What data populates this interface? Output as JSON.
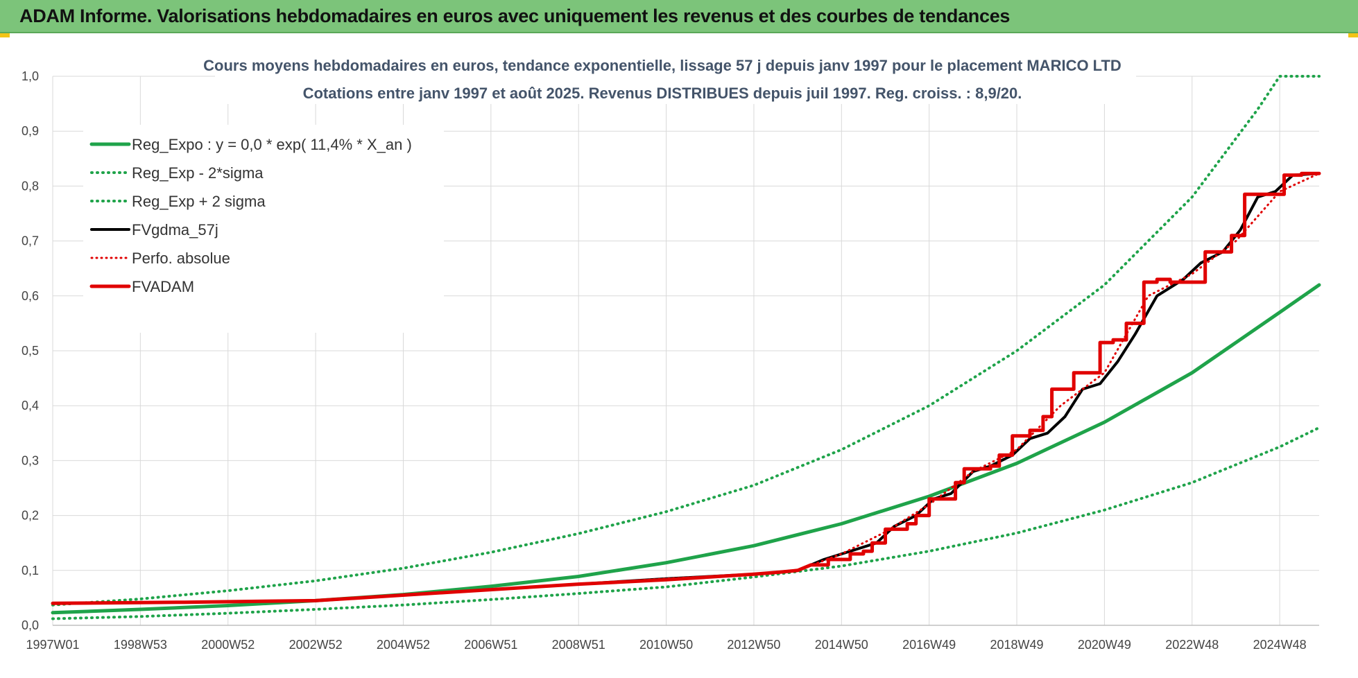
{
  "header": {
    "title": "ADAM Informe. Valorisations hebdomadaires en euros avec uniquement les revenus et des courbes de tendances"
  },
  "chart_data": {
    "type": "line",
    "title_line1": "Cours moyens hebdomadaires en euros, tendance exponentielle, lissage 57 j depuis janv 1997  pour le placement MARICO LTD",
    "title_line2": "Cotations entre janv 1997 et août 2025. Revenus DISTRIBUES depuis juil 1997. Reg. croiss. : 8,9/20.",
    "xlabel": "",
    "ylabel": "",
    "ylim": [
      0,
      1
    ],
    "xlim": [
      1997.0,
      2025.9
    ],
    "grid": true,
    "legend_position": "top-left",
    "y_ticks": [
      "0,0",
      "0,1",
      "0,2",
      "0,3",
      "0,4",
      "0,5",
      "0,6",
      "0,7",
      "0,8",
      "0,9",
      "1,0"
    ],
    "x_ticks": [
      {
        "label": "1997W01",
        "x": 1997.0
      },
      {
        "label": "1998W53",
        "x": 1999.0
      },
      {
        "label": "2000W52",
        "x": 2001.0
      },
      {
        "label": "2002W52",
        "x": 2003.0
      },
      {
        "label": "2004W52",
        "x": 2005.0
      },
      {
        "label": "2006W51",
        "x": 2007.0
      },
      {
        "label": "2008W51",
        "x": 2009.0
      },
      {
        "label": "2010W50",
        "x": 2011.0
      },
      {
        "label": "2012W50",
        "x": 2013.0
      },
      {
        "label": "2014W50",
        "x": 2015.0
      },
      {
        "label": "2016W49",
        "x": 2017.0
      },
      {
        "label": "2018W49",
        "x": 2019.0
      },
      {
        "label": "2020W49",
        "x": 2021.0
      },
      {
        "label": "2022W48",
        "x": 2023.0
      },
      {
        "label": "2024W48",
        "x": 2025.0
      }
    ],
    "series": [
      {
        "name": "Reg_Expo : y = 0,0 * exp( 11,4% *  X_an )",
        "color": "#1fa34a",
        "style": "solid",
        "width": 5,
        "x": [
          1997.0,
          1999.0,
          2001.0,
          2003.0,
          2005.0,
          2007.0,
          2009.0,
          2011.0,
          2013.0,
          2015.0,
          2017.0,
          2019.0,
          2021.0,
          2023.0,
          2025.0,
          2025.9
        ],
        "y": [
          0.023,
          0.029,
          0.036,
          0.045,
          0.056,
          0.071,
          0.089,
          0.114,
          0.145,
          0.185,
          0.235,
          0.295,
          0.37,
          0.46,
          0.57,
          0.62
        ]
      },
      {
        "name": "Reg_Exp - 2*sigma",
        "color": "#1fa34a",
        "style": "dotted",
        "width": 4,
        "x": [
          1997.0,
          1999.0,
          2001.0,
          2003.0,
          2005.0,
          2007.0,
          2009.0,
          2011.0,
          2013.0,
          2015.0,
          2017.0,
          2019.0,
          2021.0,
          2023.0,
          2025.0,
          2025.9
        ],
        "y": [
          0.012,
          0.016,
          0.022,
          0.029,
          0.037,
          0.047,
          0.058,
          0.07,
          0.088,
          0.108,
          0.135,
          0.168,
          0.21,
          0.26,
          0.325,
          0.36
        ]
      },
      {
        "name": "Reg_Exp + 2 sigma",
        "color": "#1fa34a",
        "style": "dotted",
        "width": 4,
        "x": [
          1997.0,
          1999.0,
          2001.0,
          2003.0,
          2005.0,
          2007.0,
          2009.0,
          2011.0,
          2013.0,
          2015.0,
          2017.0,
          2019.0,
          2021.0,
          2023.0,
          2024.5,
          2025.0,
          2025.9
        ],
        "y": [
          0.037,
          0.048,
          0.063,
          0.081,
          0.104,
          0.133,
          0.167,
          0.207,
          0.255,
          0.32,
          0.4,
          0.5,
          0.62,
          0.78,
          0.94,
          1.0,
          1.0
        ]
      },
      {
        "name": "FVgdma_57j",
        "color": "#000000",
        "style": "solid",
        "width": 4,
        "x": [
          1997.0,
          2000.0,
          2003.0,
          2006.0,
          2009.0,
          2011.0,
          2013.0,
          2014.0,
          2014.6,
          2015.2,
          2015.8,
          2016.2,
          2016.7,
          2017.1,
          2017.5,
          2018.0,
          2018.4,
          2018.9,
          2019.3,
          2019.7,
          2020.1,
          2020.5,
          2020.9,
          2021.3,
          2021.7,
          2022.2,
          2022.8,
          2023.2,
          2023.7,
          2024.1,
          2024.5,
          2024.9,
          2025.3,
          2025.9
        ],
        "y": [
          0.04,
          0.042,
          0.045,
          0.06,
          0.075,
          0.085,
          0.093,
          0.1,
          0.12,
          0.135,
          0.15,
          0.18,
          0.2,
          0.23,
          0.24,
          0.28,
          0.29,
          0.31,
          0.34,
          0.35,
          0.38,
          0.43,
          0.44,
          0.48,
          0.53,
          0.6,
          0.63,
          0.66,
          0.68,
          0.72,
          0.78,
          0.79,
          0.82,
          0.823
        ]
      },
      {
        "name": "Perfo. absolue",
        "color": "#e00000",
        "style": "dotted",
        "width": 3,
        "x": [
          1997.0,
          2000.0,
          2003.0,
          2006.0,
          2009.0,
          2011.0,
          2013.0,
          2014.0,
          2015.0,
          2016.0,
          2017.0,
          2018.0,
          2019.0,
          2020.0,
          2021.0,
          2022.0,
          2023.0,
          2024.0,
          2025.0,
          2025.9
        ],
        "y": [
          0.04,
          0.042,
          0.045,
          0.06,
          0.075,
          0.085,
          0.093,
          0.1,
          0.13,
          0.17,
          0.22,
          0.28,
          0.32,
          0.4,
          0.46,
          0.6,
          0.64,
          0.7,
          0.79,
          0.823
        ]
      },
      {
        "name": "FVADAM",
        "color": "#e00000",
        "style": "solid",
        "width": 5,
        "x": [
          1997.0,
          2000.0,
          2003.0,
          2006.0,
          2009.0,
          2011.0,
          2012.0,
          2013.0,
          2013.6,
          2014.0,
          2014.3,
          2014.7,
          2014.7,
          2015.2,
          2015.2,
          2015.5,
          2015.5,
          2015.7,
          2015.7,
          2016.0,
          2016.0,
          2016.5,
          2016.5,
          2016.7,
          2016.7,
          2017.0,
          2017.0,
          2017.6,
          2017.6,
          2017.8,
          2017.8,
          2018.4,
          2018.4,
          2018.6,
          2018.6,
          2018.9,
          2018.9,
          2019.3,
          2019.3,
          2019.6,
          2019.6,
          2019.8,
          2019.8,
          2020.3,
          2020.3,
          2020.9,
          2020.9,
          2021.2,
          2021.2,
          2021.5,
          2021.5,
          2021.9,
          2021.9,
          2022.2,
          2022.2,
          2022.5,
          2022.5,
          2023.3,
          2023.3,
          2023.9,
          2023.9,
          2024.2,
          2024.2,
          2024.4,
          2024.4,
          2025.1,
          2025.1,
          2025.5,
          2025.5,
          2025.9
        ],
        "y": [
          0.04,
          0.042,
          0.045,
          0.06,
          0.075,
          0.083,
          0.088,
          0.093,
          0.097,
          0.1,
          0.11,
          0.11,
          0.12,
          0.12,
          0.13,
          0.13,
          0.135,
          0.135,
          0.15,
          0.15,
          0.175,
          0.175,
          0.185,
          0.185,
          0.2,
          0.2,
          0.23,
          0.23,
          0.26,
          0.26,
          0.285,
          0.285,
          0.29,
          0.29,
          0.31,
          0.31,
          0.345,
          0.345,
          0.355,
          0.355,
          0.38,
          0.38,
          0.43,
          0.43,
          0.46,
          0.46,
          0.515,
          0.515,
          0.52,
          0.52,
          0.55,
          0.55,
          0.625,
          0.625,
          0.63,
          0.63,
          0.625,
          0.625,
          0.68,
          0.68,
          0.71,
          0.71,
          0.785,
          0.785,
          0.785,
          0.785,
          0.82,
          0.82,
          0.823,
          0.823
        ]
      }
    ]
  }
}
